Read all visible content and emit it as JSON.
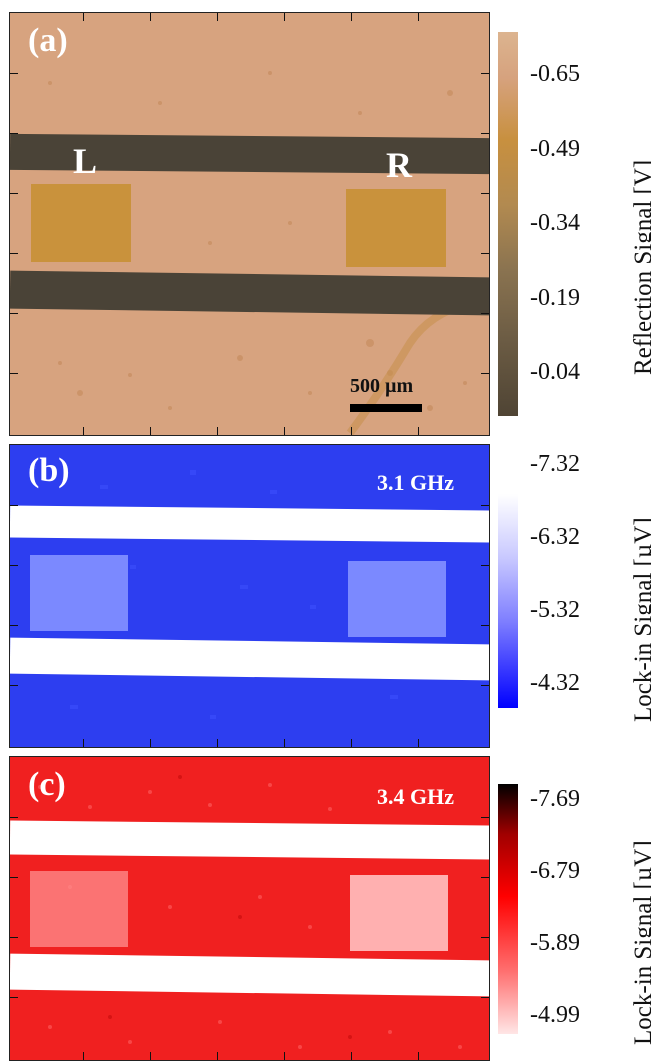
{
  "panels": [
    {
      "label": "(a)",
      "pad_left": "L",
      "pad_right": "R",
      "scalebar": "500 µm",
      "colorbar": {
        "label": "Reflection Signal [V]",
        "ticks": [
          "-0.65",
          "-0.49",
          "-0.34",
          "-0.19",
          "-0.04"
        ],
        "colors": [
          "#d9b090",
          "#c8903f",
          "#9a7a4c",
          "#5a4a36"
        ]
      },
      "colors": {
        "background": "#d7a37f",
        "strip": "#4a4337",
        "pad": "#c9923c"
      }
    },
    {
      "label": "(b)",
      "frequency": "3.1 GHz",
      "colorbar": {
        "label": "Lock-in Signal [µV]",
        "ticks": [
          "-7.32",
          "-6.32",
          "-5.32",
          "-4.32"
        ],
        "colors": [
          "#ffffff",
          "#7d7dff",
          "#0000ff"
        ]
      },
      "colors": {
        "background": "#2d3ef0",
        "strip": "#ffffff",
        "pad": "#7b89ff"
      }
    },
    {
      "label": "(c)",
      "frequency": "3.4 GHz",
      "colorbar": {
        "label": "Lock-in Signal [µV]",
        "ticks": [
          "-7.69",
          "-6.79",
          "-5.89",
          "-4.99"
        ],
        "colors": [
          "#000000",
          "#ff0000",
          "#ffe6e6"
        ]
      },
      "colors": {
        "background": "#f02020",
        "strip": "#ffffff",
        "pad": "#ff8f8f"
      }
    }
  ]
}
